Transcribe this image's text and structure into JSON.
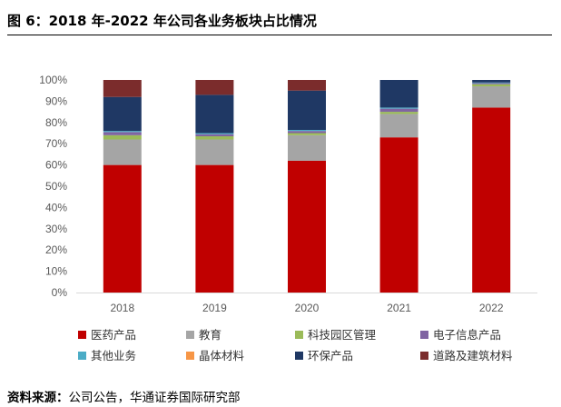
{
  "title": "图 6：2018 年-2022 年公司各业务板块占比情况",
  "source_label": "资料来源：",
  "source_text": "公司公告，华通证券国际研究部",
  "chart_data": {
    "type": "bar",
    "stacked": true,
    "title": "图 6：2018 年-2022 年公司各业务板块占比情况",
    "categories": [
      "2018",
      "2019",
      "2020",
      "2021",
      "2022"
    ],
    "ylim": [
      0,
      100
    ],
    "yticks": [
      "0%",
      "10%",
      "20%",
      "30%",
      "40%",
      "50%",
      "60%",
      "70%",
      "80%",
      "90%",
      "100%"
    ],
    "ytick_values": [
      0,
      10,
      20,
      30,
      40,
      50,
      60,
      70,
      80,
      90,
      100
    ],
    "xlabel": "",
    "ylabel": "",
    "grid": false,
    "legend_position": "bottom",
    "series": [
      {
        "name": "医药产品",
        "color": "#C00000",
        "values": [
          60,
          60,
          62,
          73,
          87
        ]
      },
      {
        "name": "教育",
        "color": "#A5A5A5",
        "values": [
          12,
          12,
          12,
          11,
          10
        ]
      },
      {
        "name": "科技园区管理",
        "color": "#9BBB59",
        "values": [
          2,
          1.5,
          1,
          1,
          1
        ]
      },
      {
        "name": "电子信息产品",
        "color": "#8064A2",
        "values": [
          1.5,
          1,
          1,
          1.5,
          0.5
        ]
      },
      {
        "name": "其他业务",
        "color": "#4BACC6",
        "values": [
          0.5,
          0.5,
          0.5,
          0.5,
          0.3
        ]
      },
      {
        "name": "晶体材料",
        "color": "#F79646",
        "values": [
          0,
          0,
          0,
          0,
          0
        ]
      },
      {
        "name": "环保产品",
        "color": "#1F3864",
        "values": [
          16,
          18,
          18.5,
          13,
          1.2
        ]
      },
      {
        "name": "道路及建筑材料",
        "color": "#7B2C2C",
        "values": [
          8,
          7,
          5,
          0,
          0
        ]
      }
    ]
  }
}
